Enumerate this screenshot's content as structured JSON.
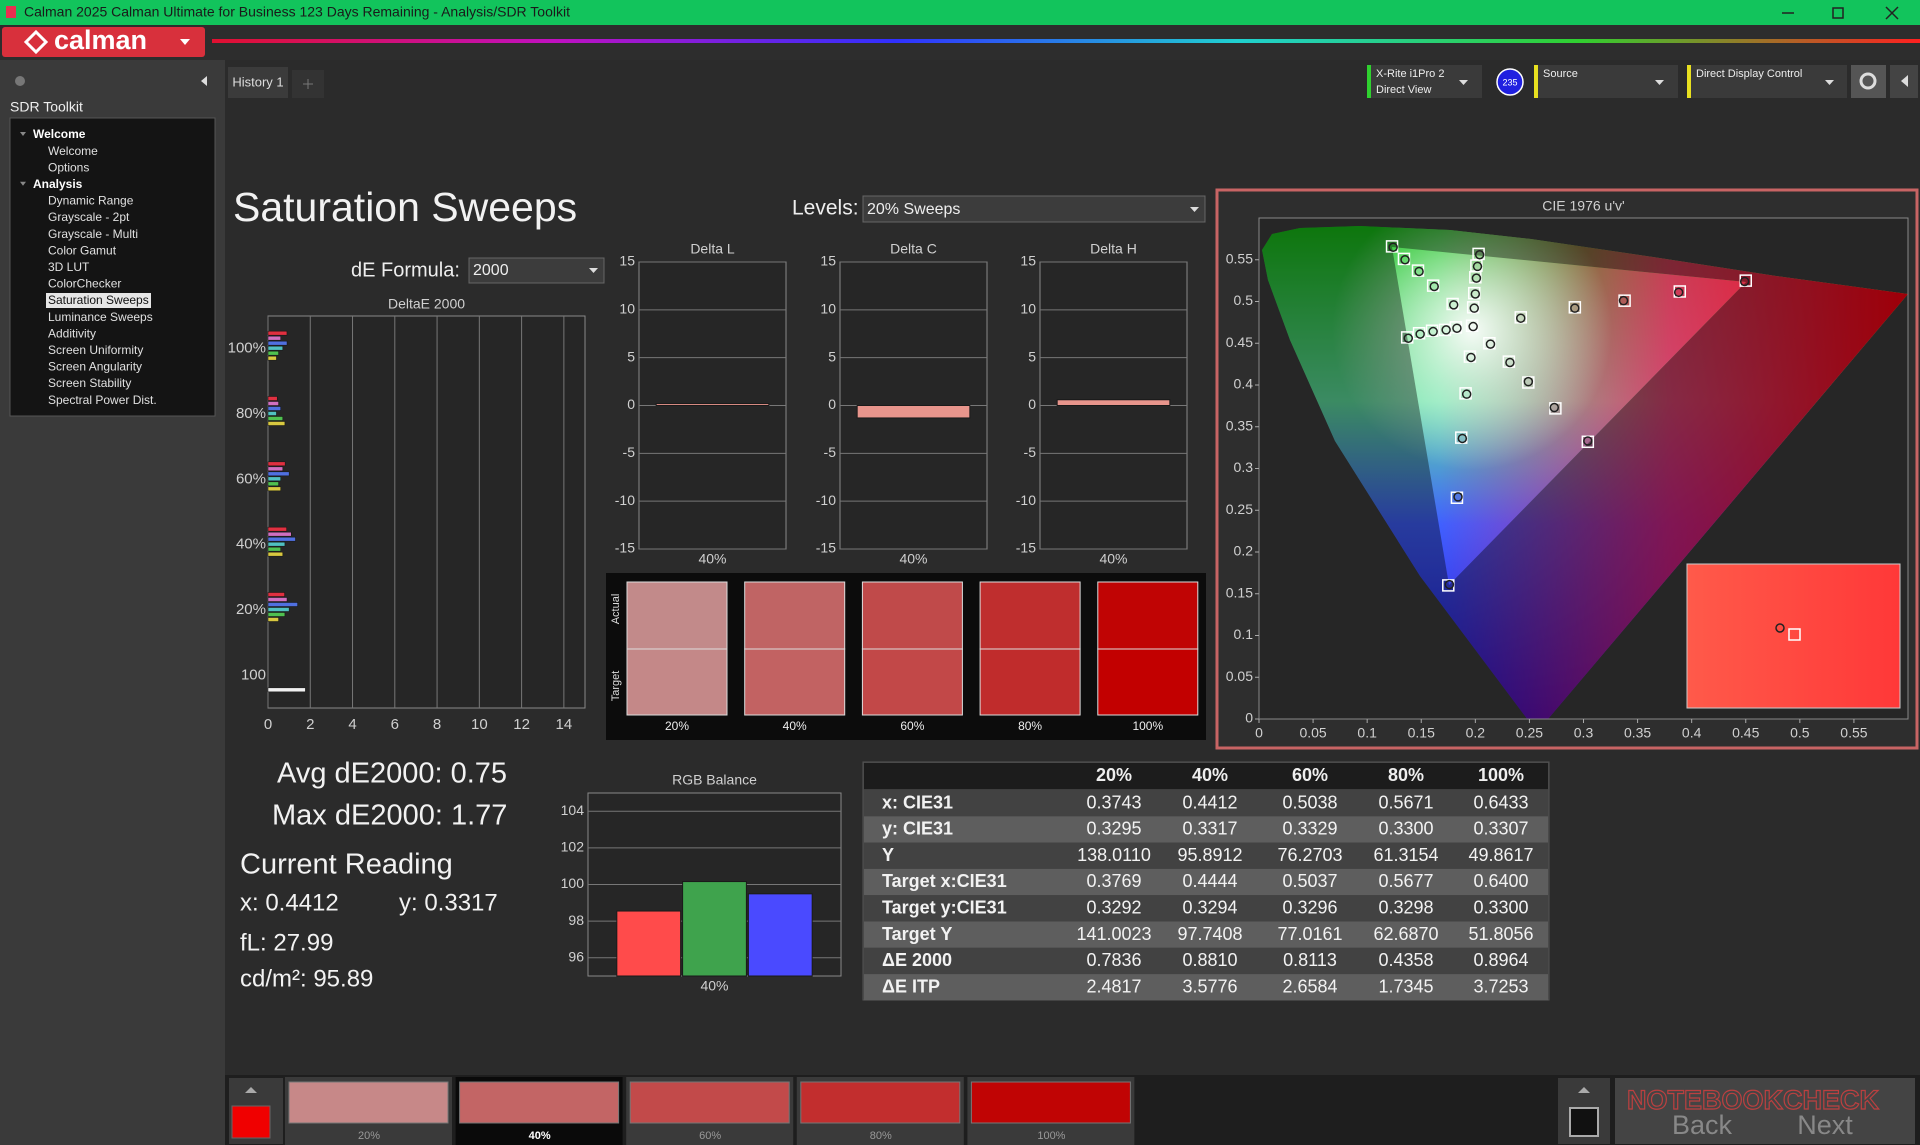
{
  "window": {
    "title": "Calman 2025 Calman Ultimate for Business 123 Days Remaining  - Analysis/SDR Toolkit"
  },
  "brand": {
    "name": "calman"
  },
  "sidebar": {
    "title": "SDR Toolkit",
    "groups": [
      {
        "label": "Welcome",
        "items": [
          {
            "label": "Welcome"
          },
          {
            "label": "Options"
          }
        ]
      },
      {
        "label": "Analysis",
        "items": [
          {
            "label": "Dynamic Range"
          },
          {
            "label": "Grayscale - 2pt"
          },
          {
            "label": "Grayscale - Multi"
          },
          {
            "label": "Color Gamut"
          },
          {
            "label": "3D LUT"
          },
          {
            "label": "ColorChecker"
          },
          {
            "label": "Saturation Sweeps",
            "selected": true
          },
          {
            "label": "Luminance Sweeps"
          },
          {
            "label": "Additivity"
          },
          {
            "label": "Screen Uniformity"
          },
          {
            "label": "Screen Angularity"
          },
          {
            "label": "Screen Stability"
          },
          {
            "label": "Spectral Power Dist."
          }
        ]
      }
    ]
  },
  "tabs": [
    "History 1"
  ],
  "toolbar": {
    "meter": "X-Rite i1Pro 2",
    "meter_mode": "Direct View",
    "badge": "235",
    "source": "Source",
    "display_control": "Direct Display Control"
  },
  "page": {
    "title": "Saturation Sweeps",
    "levels_label": "Levels:",
    "levels_value": "20% Sweeps",
    "formula_label": "dE Formula:",
    "formula_value": "2000"
  },
  "delta_e_chart": {
    "type": "hbar",
    "title": "DeltaE 2000",
    "categories": [
      "100%",
      "80%",
      "60%",
      "40%",
      "20%",
      "100"
    ],
    "series": [
      {
        "color": "#e03040",
        "values": [
          0.8964,
          0.4358,
          0.8113,
          0.881,
          0.7836,
          null
        ]
      },
      {
        "color": "#d070c0",
        "values": [
          0.6,
          0.5,
          0.7,
          1.1,
          0.9,
          null
        ]
      },
      {
        "color": "#5070e0",
        "values": [
          0.9,
          0.6,
          1.0,
          1.3,
          1.4,
          null
        ]
      },
      {
        "color": "#50c0c0",
        "values": [
          0.7,
          0.4,
          0.6,
          0.8,
          1.0,
          null
        ]
      },
      {
        "color": "#50c050",
        "values": [
          0.5,
          0.7,
          0.5,
          0.6,
          0.8,
          null
        ]
      },
      {
        "color": "#d8c840",
        "values": [
          0.4,
          0.8,
          0.6,
          0.7,
          0.5,
          null
        ]
      },
      {
        "color": "#f0f0f0",
        "values": [
          null,
          null,
          null,
          null,
          null,
          1.77
        ]
      }
    ],
    "xlim": [
      0,
      15
    ],
    "xticks": [
      0,
      2,
      4,
      6,
      8,
      10,
      12,
      14
    ],
    "grid": true
  },
  "delta_charts": [
    {
      "type": "bar",
      "title": "Delta L",
      "categories": [
        "40%"
      ],
      "values": [
        0.2
      ],
      "color": "#e8958c",
      "ylim": [
        -15,
        15
      ],
      "yticks": [
        15,
        10,
        5,
        0,
        -5,
        -10,
        -15
      ],
      "grid": true
    },
    {
      "type": "bar",
      "title": "Delta C",
      "categories": [
        "40%"
      ],
      "values": [
        -1.3
      ],
      "color": "#e8958c",
      "ylim": [
        -15,
        15
      ],
      "yticks": [
        15,
        10,
        5,
        0,
        -5,
        -10,
        -15
      ],
      "grid": true
    },
    {
      "type": "bar",
      "title": "Delta H",
      "categories": [
        "40%"
      ],
      "values": [
        0.6
      ],
      "color": "#e8958c",
      "ylim": [
        -15,
        15
      ],
      "yticks": [
        15,
        10,
        5,
        0,
        -5,
        -10,
        -15
      ],
      "grid": true
    }
  ],
  "swatches": {
    "actual_label": "Actual",
    "target_label": "Target",
    "items": [
      {
        "label": "20%",
        "actual": "#c28a8a",
        "target": "#c48888"
      },
      {
        "label": "40%",
        "actual": "#c06464",
        "target": "#c26262"
      },
      {
        "label": "60%",
        "actual": "#c04a4a",
        "target": "#c24848"
      },
      {
        "label": "80%",
        "actual": "#bf2e2e",
        "target": "#c02c2c"
      },
      {
        "label": "100%",
        "actual": "#c00404",
        "target": "#c20000"
      }
    ]
  },
  "cie_chart": {
    "type": "scatter",
    "title": "CIE 1976 u'v'",
    "xlim": [
      0,
      0.6
    ],
    "ylim": [
      0,
      0.6
    ],
    "xticks": [
      0,
      0.05,
      0.1,
      0.15,
      0.2,
      0.25,
      0.3,
      0.35,
      0.4,
      0.45,
      0.5,
      0.55
    ],
    "yticks": [
      0,
      0.05,
      0.1,
      0.15,
      0.2,
      0.25,
      0.3,
      0.35,
      0.4,
      0.45,
      0.5,
      0.55
    ],
    "series": [
      {
        "marker": "square",
        "color": "#ffffff",
        "x": [
          0.197,
          0.242,
          0.292,
          0.338,
          0.389,
          0.45,
          0.213,
          0.231,
          0.249,
          0.274,
          0.304,
          0.195,
          0.191,
          0.187,
          0.183,
          0.175,
          0.182,
          0.172,
          0.16,
          0.148,
          0.137,
          0.179,
          0.161,
          0.147,
          0.134,
          0.123,
          0.198,
          0.199,
          0.2,
          0.201,
          0.203
        ],
        "values": [
          0.471,
          0.481,
          0.493,
          0.501,
          0.512,
          0.525,
          0.45,
          0.428,
          0.403,
          0.372,
          0.332,
          0.434,
          0.39,
          0.337,
          0.265,
          0.16,
          0.469,
          0.466,
          0.465,
          0.462,
          0.457,
          0.497,
          0.519,
          0.537,
          0.551,
          0.566,
          0.493,
          0.51,
          0.529,
          0.543,
          0.557
        ]
      },
      {
        "marker": "circle",
        "color": "#202020",
        "x": [
          0.198,
          0.242,
          0.292,
          0.337,
          0.388,
          0.449,
          0.214,
          0.232,
          0.249,
          0.273,
          0.304,
          0.196,
          0.192,
          0.188,
          0.184,
          0.176,
          0.183,
          0.173,
          0.161,
          0.149,
          0.138,
          0.18,
          0.162,
          0.148,
          0.135,
          0.124,
          0.199,
          0.2,
          0.201,
          0.202,
          0.204
        ],
        "values": [
          0.47,
          0.48,
          0.492,
          0.501,
          0.511,
          0.524,
          0.449,
          0.427,
          0.404,
          0.373,
          0.333,
          0.433,
          0.389,
          0.336,
          0.266,
          0.161,
          0.468,
          0.466,
          0.464,
          0.461,
          0.456,
          0.496,
          0.518,
          0.536,
          0.55,
          0.565,
          0.492,
          0.509,
          0.528,
          0.542,
          0.556
        ]
      }
    ]
  },
  "stats": {
    "avg": "Avg dE2000: 0.75",
    "max": "Max dE2000: 1.77",
    "heading": "Current Reading",
    "x": "x: 0.4412",
    "y": "y: 0.3317",
    "fl": "fL: 27.99",
    "cdm2": "cd/m²: 95.89"
  },
  "rgb_balance": {
    "type": "bar",
    "title": "RGB Balance",
    "categories": [
      "40%"
    ],
    "series": [
      {
        "color": "#ff4b4b",
        "values": [
          98.55
        ]
      },
      {
        "color": "#3fa34d",
        "values": [
          100.16
        ]
      },
      {
        "color": "#4a4aff",
        "values": [
          99.49
        ]
      }
    ],
    "ylim": [
      95,
      105
    ],
    "yticks": [
      96,
      98,
      100,
      102,
      104
    ],
    "grid": true
  },
  "table": {
    "header": [
      "20%",
      "40%",
      "60%",
      "80%",
      "100%"
    ],
    "rows": [
      {
        "label": "x: CIE31",
        "values": [
          "0.3743",
          "0.4412",
          "0.5038",
          "0.5671",
          "0.6433"
        ]
      },
      {
        "label": "y: CIE31",
        "values": [
          "0.3295",
          "0.3317",
          "0.3329",
          "0.3300",
          "0.3307"
        ]
      },
      {
        "label": "Y",
        "values": [
          "138.0110",
          "95.8912",
          "76.2703",
          "61.3154",
          "49.8617"
        ]
      },
      {
        "label": "Target x:CIE31",
        "values": [
          "0.3769",
          "0.4444",
          "0.5037",
          "0.5677",
          "0.6400"
        ]
      },
      {
        "label": "Target y:CIE31",
        "values": [
          "0.3292",
          "0.3294",
          "0.3296",
          "0.3298",
          "0.3300"
        ]
      },
      {
        "label": "Target Y",
        "values": [
          "141.0023",
          "97.7408",
          "77.0161",
          "62.6870",
          "51.8056"
        ]
      },
      {
        "label": "ΔE 2000",
        "values": [
          "0.7836",
          "0.8810",
          "0.8113",
          "0.4358",
          "0.8964"
        ]
      },
      {
        "label": "ΔE ITP",
        "values": [
          "2.4817",
          "3.5776",
          "2.6584",
          "1.7345",
          "3.7253"
        ]
      }
    ]
  },
  "bottom_bar": {
    "swatches": [
      {
        "label": "20%",
        "color": "#c78888"
      },
      {
        "label": "40%",
        "color": "#c36565",
        "selected": true
      },
      {
        "label": "60%",
        "color": "#c24a4a"
      },
      {
        "label": "80%",
        "color": "#c22e2e"
      },
      {
        "label": "100%",
        "color": "#c00404"
      }
    ],
    "back": "Back",
    "next": "Next"
  },
  "watermark": "NOTEBOOKCHECK"
}
